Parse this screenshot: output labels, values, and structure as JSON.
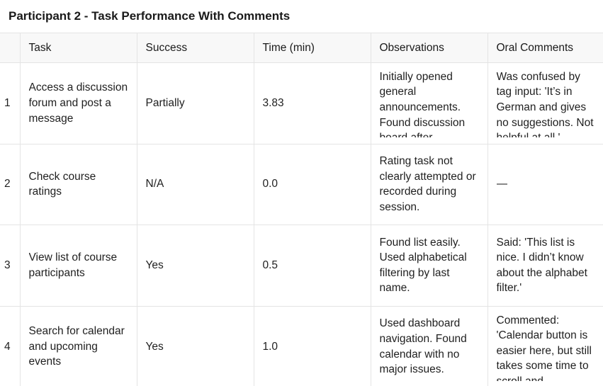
{
  "title": "Participant 2 - Task Performance With Comments",
  "columns": {
    "index": "",
    "task": "Task",
    "success": "Success",
    "time": "Time (min)",
    "observations": "Observations",
    "oral_comments": "Oral Comments"
  },
  "rows": [
    {
      "index": "1",
      "task": "Access a discussion forum and post a message",
      "success": "Partially",
      "time": "3.83",
      "observations": "Initially opened general announcements. Found discussion board after",
      "oral_comments": "Was confused by tag input: 'It’s in German and gives no suggestions. Not helpful at all.'"
    },
    {
      "index": "2",
      "task": "Check course ratings",
      "success": "N/A",
      "time": "0.0",
      "observations": "Rating task not clearly attempted or recorded during session.",
      "oral_comments": "—"
    },
    {
      "index": "3",
      "task": "View list of course participants",
      "success": "Yes",
      "time": "0.5",
      "observations": "Found list easily. Used alphabetical filtering by last name.",
      "oral_comments": "Said: 'This list is nice. I didn’t know about the alphabet filter.'"
    },
    {
      "index": "4",
      "task": "Search for calendar and upcoming events",
      "success": "Yes",
      "time": "1.0",
      "observations": "Used dashboard navigation. Found calendar with no major issues.",
      "oral_comments": "Commented: 'Calendar button is easier here, but still takes some time to scroll and"
    }
  ]
}
